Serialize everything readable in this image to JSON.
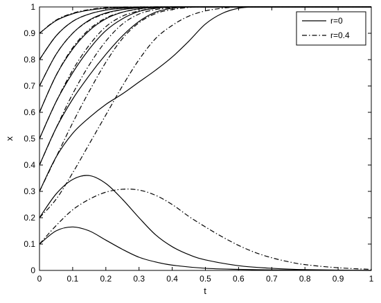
{
  "chart_data": {
    "type": "line",
    "title": "",
    "xlabel": "t",
    "ylabel": "x",
    "xlim": [
      0,
      1
    ],
    "ylim": [
      0,
      1
    ],
    "grid": false,
    "legend_position": "top-right",
    "xticks": [
      "0",
      "0.1",
      "0.2",
      "0.3",
      "0.4",
      "0.5",
      "0.6",
      "0.7",
      "0.8",
      "0.9",
      "1"
    ],
    "yticks": [
      "0",
      "0.1",
      "0.2",
      "0.3",
      "0.4",
      "0.5",
      "0.6",
      "0.7",
      "0.8",
      "0.9",
      "1"
    ],
    "legend": [
      {
        "label": "r=0",
        "style": "solid"
      },
      {
        "label": "r=0.4",
        "style": "dashdot"
      }
    ],
    "series": [
      {
        "style": "solid",
        "x": [
          0,
          0.05,
          0.1,
          0.15,
          0.2,
          0.25,
          0.3,
          0.35,
          0.4,
          0.5,
          0.6,
          0.7,
          0.8,
          1.0
        ],
        "y": [
          0.1,
          0.15,
          0.165,
          0.15,
          0.115,
          0.08,
          0.05,
          0.032,
          0.02,
          0.008,
          0.004,
          0.002,
          0.001,
          0.0
        ]
      },
      {
        "style": "solid",
        "x": [
          0,
          0.05,
          0.1,
          0.15,
          0.2,
          0.25,
          0.3,
          0.35,
          0.4,
          0.45,
          0.5,
          0.6,
          0.7,
          0.8,
          1.0
        ],
        "y": [
          0.2,
          0.29,
          0.345,
          0.36,
          0.33,
          0.27,
          0.2,
          0.135,
          0.09,
          0.06,
          0.04,
          0.018,
          0.008,
          0.003,
          0.0
        ]
      },
      {
        "style": "dashdot",
        "x": [
          0,
          0.05,
          0.1,
          0.15,
          0.2,
          0.25,
          0.3,
          0.35,
          0.4,
          0.45,
          0.5,
          0.55,
          0.6,
          0.65,
          0.7,
          0.75,
          0.8,
          0.9,
          1.0
        ],
        "y": [
          0.1,
          0.17,
          0.23,
          0.27,
          0.297,
          0.308,
          0.305,
          0.285,
          0.25,
          0.205,
          0.165,
          0.128,
          0.095,
          0.068,
          0.048,
          0.033,
          0.022,
          0.01,
          0.004
        ]
      },
      {
        "style": "solid",
        "x": [
          0,
          0.05,
          0.1,
          0.15,
          0.2,
          0.25,
          0.3,
          0.35,
          0.4,
          0.45,
          0.5,
          0.55,
          0.6,
          0.65,
          0.7
        ],
        "y": [
          0.3,
          0.43,
          0.52,
          0.58,
          0.63,
          0.67,
          0.715,
          0.76,
          0.81,
          0.87,
          0.935,
          0.975,
          0.995,
          1.0,
          1.0
        ]
      },
      {
        "style": "dashdot",
        "x": [
          0,
          0.05,
          0.1,
          0.15,
          0.2,
          0.25,
          0.3,
          0.35,
          0.4,
          0.45,
          0.5,
          0.55,
          0.6,
          0.65,
          0.7
        ],
        "y": [
          0.2,
          0.27,
          0.37,
          0.48,
          0.59,
          0.7,
          0.8,
          0.88,
          0.93,
          0.965,
          0.985,
          0.995,
          1.0,
          1.0,
          1.0
        ]
      },
      {
        "style": "solid",
        "x": [
          0,
          0.05,
          0.1,
          0.15,
          0.2,
          0.25,
          0.3,
          0.35,
          0.4,
          0.45,
          0.5
        ],
        "y": [
          0.4,
          0.54,
          0.65,
          0.74,
          0.82,
          0.89,
          0.945,
          0.98,
          0.995,
          1.0,
          1.0
        ]
      },
      {
        "style": "dashdot",
        "x": [
          0,
          0.05,
          0.1,
          0.15,
          0.2,
          0.25,
          0.3,
          0.35,
          0.4,
          0.45,
          0.5
        ],
        "y": [
          0.3,
          0.43,
          0.56,
          0.68,
          0.79,
          0.88,
          0.94,
          0.975,
          0.99,
          0.998,
          1.0
        ]
      },
      {
        "style": "solid",
        "x": [
          0,
          0.05,
          0.1,
          0.15,
          0.2,
          0.25,
          0.3,
          0.35,
          0.4,
          0.45,
          0.5
        ],
        "y": [
          0.5,
          0.64,
          0.75,
          0.84,
          0.91,
          0.955,
          0.983,
          0.995,
          1.0,
          1.0,
          1.0
        ]
      },
      {
        "style": "dashdot",
        "x": [
          0,
          0.05,
          0.1,
          0.15,
          0.2,
          0.25,
          0.3,
          0.35,
          0.4,
          0.45,
          0.5
        ],
        "y": [
          0.4,
          0.54,
          0.67,
          0.78,
          0.87,
          0.935,
          0.973,
          0.99,
          0.997,
          1.0,
          1.0
        ]
      },
      {
        "style": "solid",
        "x": [
          0,
          0.05,
          0.1,
          0.15,
          0.2,
          0.25,
          0.3,
          0.35,
          0.4,
          0.45
        ],
        "y": [
          0.6,
          0.74,
          0.84,
          0.91,
          0.955,
          0.98,
          0.993,
          0.998,
          1.0,
          1.0
        ]
      },
      {
        "style": "dashdot",
        "x": [
          0,
          0.05,
          0.1,
          0.15,
          0.2,
          0.25,
          0.3,
          0.35,
          0.4,
          0.45
        ],
        "y": [
          0.5,
          0.64,
          0.76,
          0.855,
          0.925,
          0.965,
          0.985,
          0.995,
          1.0,
          1.0
        ]
      },
      {
        "style": "solid",
        "x": [
          0,
          0.05,
          0.1,
          0.15,
          0.2,
          0.25,
          0.3,
          0.35,
          0.4
        ],
        "y": [
          0.7,
          0.82,
          0.9,
          0.95,
          0.977,
          0.99,
          0.997,
          1.0,
          1.0
        ]
      },
      {
        "style": "dashdot",
        "x": [
          0,
          0.05,
          0.1,
          0.15,
          0.2,
          0.25,
          0.3,
          0.35,
          0.4
        ],
        "y": [
          0.6,
          0.74,
          0.845,
          0.915,
          0.958,
          0.98,
          0.992,
          0.998,
          1.0
        ]
      },
      {
        "style": "solid",
        "x": [
          0,
          0.05,
          0.1,
          0.15,
          0.2,
          0.25,
          0.3,
          0.35
        ],
        "y": [
          0.8,
          0.89,
          0.945,
          0.973,
          0.988,
          0.995,
          0.999,
          1.0
        ]
      },
      {
        "style": "dashdot",
        "x": [
          0,
          0.05,
          0.1,
          0.15,
          0.2,
          0.25,
          0.3,
          0.35
        ],
        "y": [
          0.7,
          0.82,
          0.9,
          0.948,
          0.975,
          0.99,
          0.997,
          1.0
        ]
      },
      {
        "style": "solid",
        "x": [
          0,
          0.05,
          0.1,
          0.15,
          0.2,
          0.25,
          0.3
        ],
        "y": [
          0.9,
          0.948,
          0.974,
          0.988,
          0.995,
          0.998,
          1.0
        ]
      },
      {
        "style": "dashdot",
        "x": [
          0,
          0.05,
          0.1,
          0.15,
          0.2,
          0.25,
          0.3
        ],
        "y": [
          0.8,
          0.89,
          0.945,
          0.973,
          0.988,
          0.996,
          1.0
        ]
      },
      {
        "style": "dashdot",
        "x": [
          0,
          0.05,
          0.1,
          0.15,
          0.2,
          0.25
        ],
        "y": [
          0.9,
          0.95,
          0.976,
          0.99,
          0.997,
          1.0
        ]
      }
    ]
  }
}
